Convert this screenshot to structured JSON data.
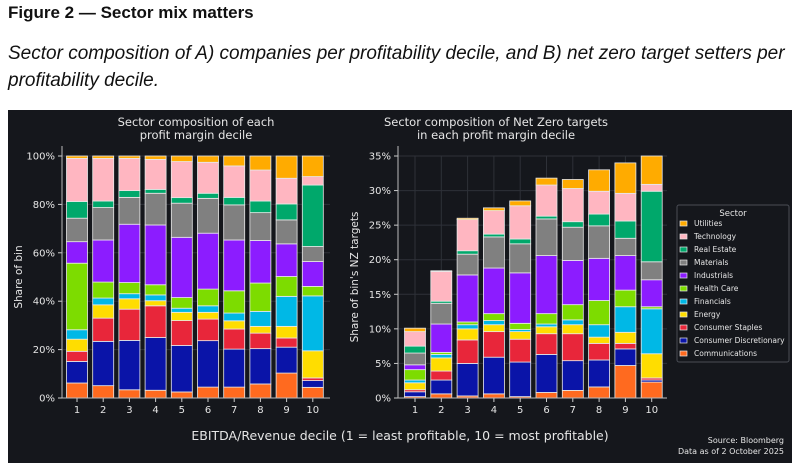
{
  "figure": {
    "title": "Figure 2 — Sector mix matters",
    "subtitle": "Sector composition of A) companies per profitability decile, and B) net zero target setters per profitability decile."
  },
  "shared": {
    "xlabel": "EBITDA/Revenue decile (1 = least profitable, 10 = most profitable)",
    "source": "Source: Bloomberg",
    "date": "Data as of 2 October 2025",
    "legend_title": "Sector"
  },
  "chart_data": [
    {
      "type": "bar",
      "stacked": true,
      "title": [
        "Sector composition of each",
        "profit margin decile"
      ],
      "ylabel": "Share of bin",
      "ylim": [
        0,
        100
      ],
      "yticks": [
        "0%",
        "20%",
        "40%",
        "60%",
        "80%",
        "100%"
      ],
      "ytick_values": [
        0,
        20,
        40,
        60,
        80,
        100
      ],
      "categories": [
        "1",
        "2",
        "3",
        "4",
        "5",
        "6",
        "7",
        "8",
        "9",
        "10"
      ],
      "grid": true,
      "series": [
        {
          "name": "Communications",
          "color": "#ff6a1f",
          "values": [
            6.2,
            5.1,
            3.4,
            3.2,
            2.5,
            4.5,
            4.5,
            5.8,
            10.3,
            4.4
          ]
        },
        {
          "name": "Consumer Discretionary",
          "color": "#0a14a8",
          "values": [
            8.9,
            18.3,
            20.4,
            21.8,
            19.2,
            19.2,
            15.7,
            14.6,
            10.7,
            2.8
          ]
        },
        {
          "name": "Consumer Staples",
          "color": "#e8263a",
          "values": [
            4.2,
            9.6,
            12.9,
            13.1,
            10.3,
            8.9,
            8.3,
            6.4,
            3.8,
            1.1
          ]
        },
        {
          "name": "Energy",
          "color": "#ffdd00",
          "values": [
            5.0,
            5.5,
            4.3,
            2.1,
            3.4,
            2.8,
            3.4,
            2.8,
            4.8,
            11.2
          ]
        },
        {
          "name": "Financials",
          "color": "#00b8e6",
          "values": [
            3.9,
            2.8,
            2.1,
            2.4,
            1.7,
            2.7,
            3.2,
            6.2,
            12.4,
            22.7
          ]
        },
        {
          "name": "Health Care",
          "color": "#7ddc00",
          "values": [
            27.5,
            6.6,
            4.6,
            4.2,
            4.4,
            6.9,
            9.2,
            11.7,
            8.2,
            3.9
          ]
        },
        {
          "name": "Industrials",
          "color": "#8c1cff",
          "values": [
            8.9,
            17.4,
            24.1,
            24.7,
            24.9,
            23.1,
            21.0,
            17.6,
            13.5,
            10.3
          ]
        },
        {
          "name": "Materials",
          "color": "#808080",
          "values": [
            9.7,
            13.4,
            11.1,
            13.1,
            14.1,
            14.4,
            14.5,
            11.5,
            9.9,
            6.2
          ]
        },
        {
          "name": "Real Estate",
          "color": "#00a86b",
          "values": [
            6.9,
            2.7,
            2.8,
            1.6,
            2.3,
            2.1,
            3.1,
            4.8,
            6.6,
            25.4
          ]
        },
        {
          "name": "Technology",
          "color": "#ffb6c1",
          "values": [
            17.8,
            17.6,
            13.3,
            12.4,
            14.9,
            12.8,
            13.0,
            12.8,
            10.6,
            3.5
          ]
        },
        {
          "name": "Utilities",
          "color": "#ffab00",
          "values": [
            1.0,
            1.0,
            1.0,
            1.4,
            2.3,
            2.6,
            4.1,
            5.8,
            9.2,
            8.5
          ]
        }
      ]
    },
    {
      "type": "bar",
      "stacked": true,
      "title": [
        "Sector composition of Net Zero targets",
        "in each profit margin decile"
      ],
      "ylabel": "Share of bin's NZ targets",
      "ylim": [
        0,
        35
      ],
      "yticks": [
        "0%",
        "5%",
        "10%",
        "15%",
        "20%",
        "25%",
        "30%",
        "35%"
      ],
      "ytick_values": [
        0,
        5,
        10,
        15,
        20,
        25,
        30,
        35
      ],
      "categories": [
        "1",
        "2",
        "3",
        "4",
        "5",
        "6",
        "7",
        "8",
        "9",
        "10"
      ],
      "grid": true,
      "legend": "right",
      "series": [
        {
          "name": "Communications",
          "color": "#ff6a1f",
          "values": [
            0.2,
            0.6,
            0.3,
            0.6,
            0.2,
            0.8,
            1.1,
            1.6,
            4.7,
            2.3
          ]
        },
        {
          "name": "Consumer Discretionary",
          "color": "#0a14a8",
          "values": [
            0.7,
            2.0,
            4.7,
            5.3,
            5.0,
            5.5,
            4.3,
            3.9,
            2.4,
            0.3
          ]
        },
        {
          "name": "Consumer Staples",
          "color": "#e8263a",
          "values": [
            0.3,
            1.3,
            3.4,
            3.7,
            3.3,
            3.0,
            3.9,
            2.4,
            0.8,
            0.3
          ]
        },
        {
          "name": "Energy",
          "color": "#ffdd00",
          "values": [
            1.0,
            1.9,
            1.6,
            1.0,
            1.1,
            1.0,
            1.3,
            0.9,
            1.6,
            3.5
          ]
        },
        {
          "name": "Financials",
          "color": "#00b8e6",
          "values": [
            0.4,
            0.5,
            0.6,
            0.6,
            0.3,
            0.4,
            0.7,
            1.8,
            3.7,
            6.5
          ]
        },
        {
          "name": "Health Care",
          "color": "#7ddc00",
          "values": [
            1.5,
            0.3,
            0.4,
            1.0,
            0.9,
            1.5,
            2.2,
            3.5,
            2.4,
            0.3
          ]
        },
        {
          "name": "Industrials",
          "color": "#8c1cff",
          "values": [
            0.7,
            4.1,
            6.8,
            6.6,
            7.3,
            8.4,
            6.4,
            6.1,
            5.0,
            3.9
          ]
        },
        {
          "name": "Materials",
          "color": "#808080",
          "values": [
            1.7,
            3.0,
            3.0,
            4.5,
            4.2,
            5.3,
            4.8,
            4.7,
            2.5,
            2.6
          ]
        },
        {
          "name": "Real Estate",
          "color": "#00a86b",
          "values": [
            1.0,
            0.3,
            0.5,
            0.4,
            0.7,
            0.4,
            0.8,
            1.7,
            2.5,
            10.2
          ]
        },
        {
          "name": "Technology",
          "color": "#ffb6c1",
          "values": [
            2.1,
            4.3,
            4.5,
            3.4,
            4.8,
            4.5,
            4.8,
            3.3,
            4.0,
            1.0
          ]
        },
        {
          "name": "Utilities",
          "color": "#ffab00",
          "values": [
            0.5,
            0.1,
            0.2,
            0.4,
            0.7,
            1.0,
            1.3,
            3.1,
            4.4,
            4.1
          ]
        }
      ]
    }
  ]
}
